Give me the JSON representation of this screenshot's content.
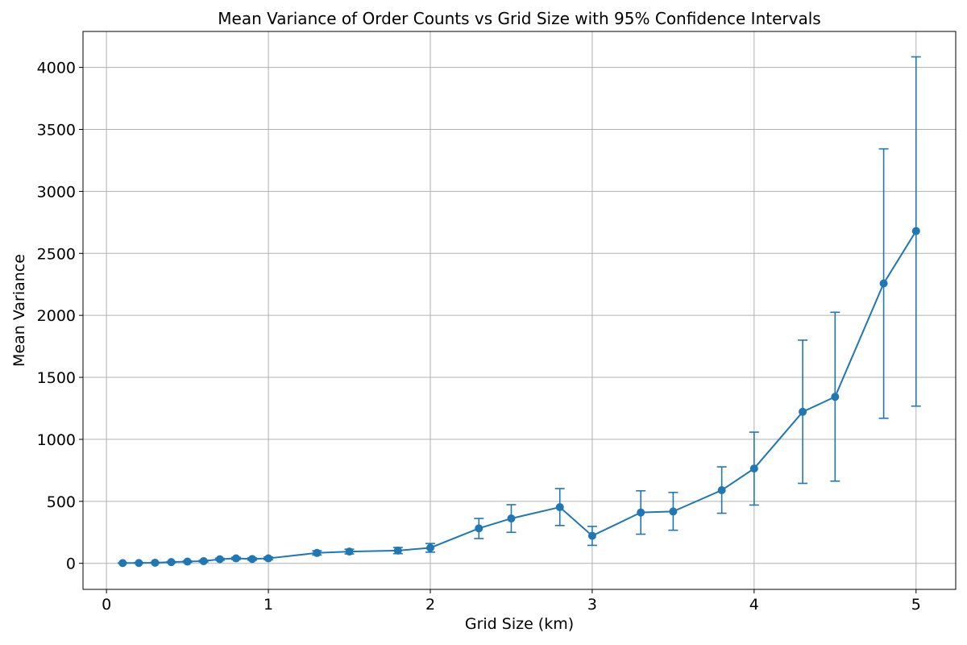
{
  "chart_data": {
    "type": "line",
    "title": "Mean Variance of Order Counts vs Grid Size with 95% Confidence Intervals",
    "xlabel": "Grid Size (km)",
    "ylabel": "Mean Variance",
    "xlim": [
      -0.145,
      5.245
    ],
    "ylim": [
      -210,
      4290
    ],
    "xticks": [
      0,
      1,
      2,
      3,
      4,
      5
    ],
    "xtick_labels": [
      "0",
      "1",
      "2",
      "3",
      "4",
      "5"
    ],
    "yticks": [
      0,
      500,
      1000,
      1500,
      2000,
      2500,
      3000,
      3500,
      4000
    ],
    "ytick_labels": [
      "0",
      "500",
      "1000",
      "1500",
      "2000",
      "2500",
      "3000",
      "3500",
      "4000"
    ],
    "grid": true,
    "series": [
      {
        "color": "#1f77b4",
        "marker": "circle",
        "error_bars": true,
        "points": [
          {
            "x": 0.1,
            "y": 2,
            "lo": 0,
            "hi": 4
          },
          {
            "x": 0.2,
            "y": 3,
            "lo": 0,
            "hi": 6
          },
          {
            "x": 0.3,
            "y": 5,
            "lo": 1,
            "hi": 9
          },
          {
            "x": 0.4,
            "y": 10,
            "lo": 5,
            "hi": 15
          },
          {
            "x": 0.5,
            "y": 14,
            "lo": 8,
            "hi": 20
          },
          {
            "x": 0.6,
            "y": 18,
            "lo": 11,
            "hi": 25
          },
          {
            "x": 0.7,
            "y": 33,
            "lo": 25,
            "hi": 41
          },
          {
            "x": 0.8,
            "y": 40,
            "lo": 31,
            "hi": 49
          },
          {
            "x": 0.9,
            "y": 35,
            "lo": 26,
            "hi": 44
          },
          {
            "x": 1.0,
            "y": 40,
            "lo": 29,
            "hi": 51
          },
          {
            "x": 1.3,
            "y": 84,
            "lo": 67,
            "hi": 101
          },
          {
            "x": 1.5,
            "y": 95,
            "lo": 76,
            "hi": 114
          },
          {
            "x": 1.8,
            "y": 103,
            "lo": 78,
            "hi": 128
          },
          {
            "x": 2.0,
            "y": 125,
            "lo": 90,
            "hi": 160
          },
          {
            "x": 2.3,
            "y": 282,
            "lo": 200,
            "hi": 362
          },
          {
            "x": 2.5,
            "y": 362,
            "lo": 250,
            "hi": 473
          },
          {
            "x": 2.8,
            "y": 453,
            "lo": 305,
            "hi": 603
          },
          {
            "x": 3.0,
            "y": 222,
            "lo": 145,
            "hi": 298
          },
          {
            "x": 3.3,
            "y": 410,
            "lo": 235,
            "hi": 585
          },
          {
            "x": 3.5,
            "y": 418,
            "lo": 267,
            "hi": 572
          },
          {
            "x": 3.8,
            "y": 590,
            "lo": 404,
            "hi": 778
          },
          {
            "x": 4.0,
            "y": 765,
            "lo": 470,
            "hi": 1058
          },
          {
            "x": 4.3,
            "y": 1222,
            "lo": 645,
            "hi": 1800
          },
          {
            "x": 4.5,
            "y": 1343,
            "lo": 663,
            "hi": 2025
          },
          {
            "x": 4.8,
            "y": 2258,
            "lo": 1170,
            "hi": 3343
          },
          {
            "x": 5.0,
            "y": 2680,
            "lo": 1268,
            "hi": 4085
          }
        ]
      }
    ]
  }
}
